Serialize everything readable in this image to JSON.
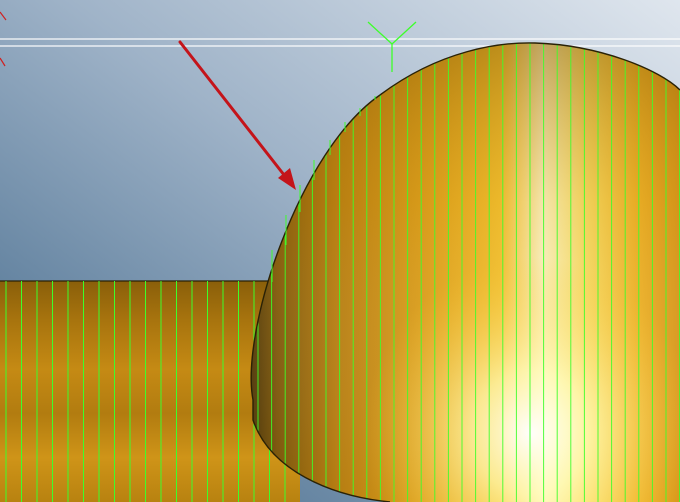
{
  "viewport": {
    "kind": "3d-cad-viewport",
    "background": {
      "top_right": "#dfe6ee",
      "mid": "#9fb3c8",
      "bottom_left": "#3f6688"
    }
  },
  "model": {
    "shape": "extruded-profile-with-rounded-dome",
    "surface_colors": {
      "dark": "#7a5408",
      "mid": "#d79a18",
      "light": "#f4c030",
      "highlight": "#ffffe8",
      "edge": "#2a2206"
    },
    "mesh_line_color": "#3dff2a"
  },
  "work_plane": {
    "line_color": "#ffffff"
  },
  "triad": {
    "color": "#3dff2a",
    "secondary_color": "#d02020"
  },
  "annotation": {
    "arrow_color": "#c4141a",
    "icon": "pointer-arrow"
  }
}
